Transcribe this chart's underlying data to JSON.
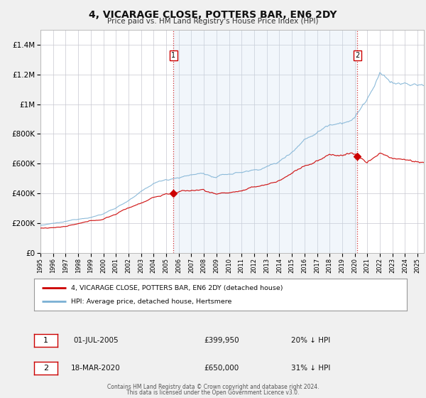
{
  "title": "4, VICARAGE CLOSE, POTTERS BAR, EN6 2DY",
  "subtitle": "Price paid vs. HM Land Registry's House Price Index (HPI)",
  "legend_line1": "4, VICARAGE CLOSE, POTTERS BAR, EN6 2DY (detached house)",
  "legend_line2": "HPI: Average price, detached house, Hertsmere",
  "annotation1_date": "01-JUL-2005",
  "annotation1_price": "£399,950",
  "annotation1_hpi": "20% ↓ HPI",
  "annotation2_date": "18-MAR-2020",
  "annotation2_price": "£650,000",
  "annotation2_hpi": "31% ↓ HPI",
  "footer_line1": "Contains HM Land Registry data © Crown copyright and database right 2024.",
  "footer_line2": "This data is licensed under the Open Government Licence v3.0.",
  "red_color": "#cc0000",
  "blue_color": "#7ab0d4",
  "blue_fill_color": "#ddeeff",
  "grid_color": "#c8c8d0",
  "ylim": [
    0,
    1500000
  ],
  "xlim_start": 1995.0,
  "xlim_end": 2025.5,
  "marker1_x": 2005.58,
  "marker1_y": 399950,
  "marker2_x": 2020.21,
  "marker2_y": 650000
}
